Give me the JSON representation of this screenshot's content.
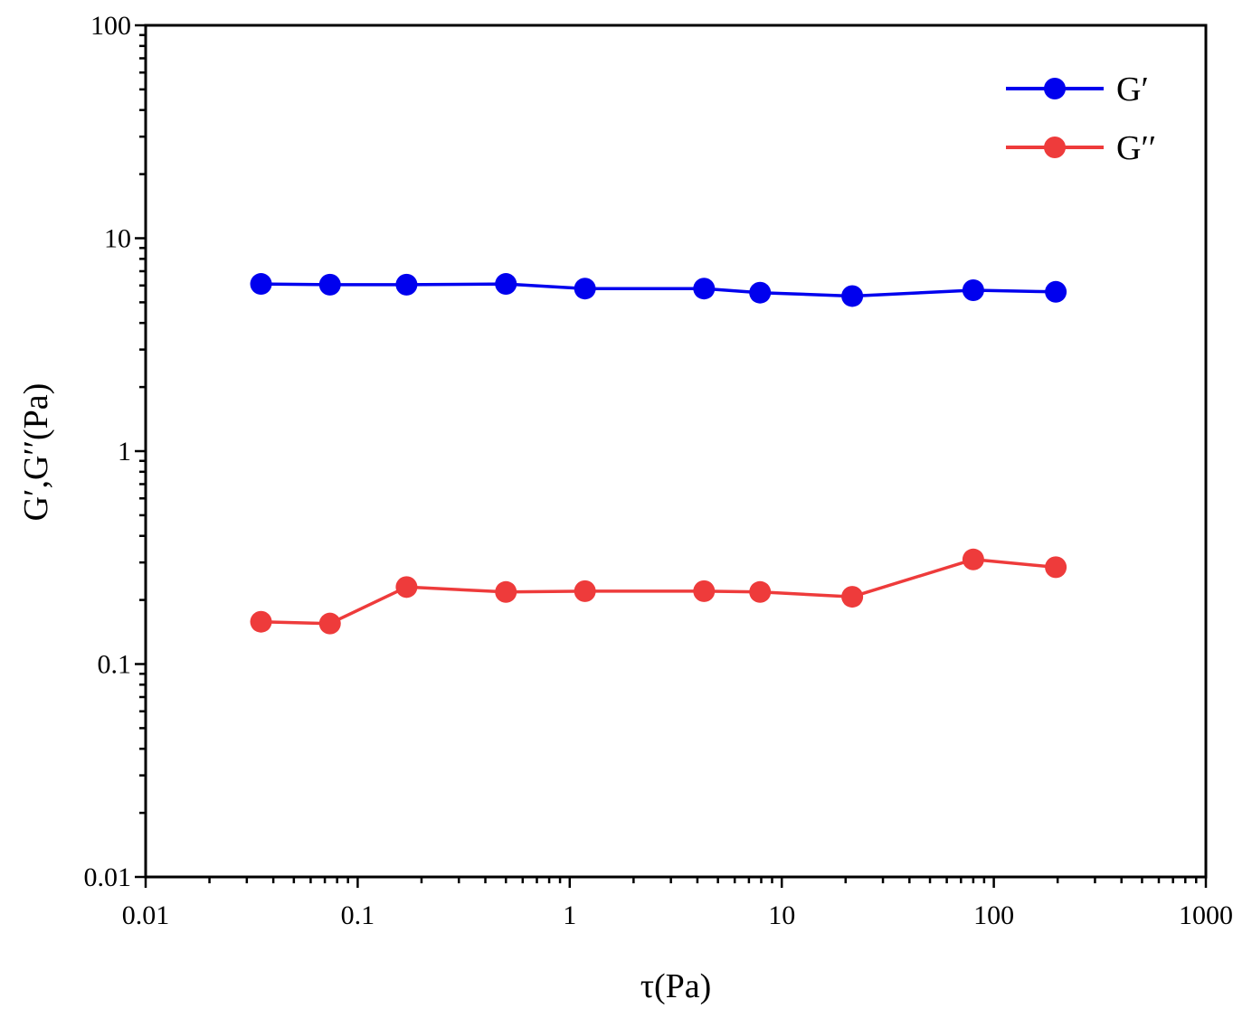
{
  "chart_data": {
    "type": "line",
    "title": "",
    "xlabel": "τ(Pa)",
    "ylabel": "G′,G′′(Pa)",
    "xscale": "log",
    "yscale": "log",
    "xlim": [
      0.01,
      1000
    ],
    "ylim": [
      0.01,
      100
    ],
    "x_ticks": [
      0.01,
      0.1,
      1,
      10,
      100,
      1000
    ],
    "x_tick_labels": [
      "0.01",
      "0.1",
      "1",
      "10",
      "100",
      "1000"
    ],
    "y_ticks": [
      0.01,
      0.1,
      1,
      10,
      100
    ],
    "y_tick_labels": [
      "0.01",
      "0.1",
      "1",
      "10",
      "100"
    ],
    "legend_position": "top-right",
    "series": [
      {
        "name": "G′",
        "color": "#0000ee",
        "x": [
          0.035,
          0.074,
          0.17,
          0.5,
          1.18,
          4.3,
          7.9,
          21.5,
          80,
          196
        ],
        "values": [
          6.1,
          6.05,
          6.05,
          6.1,
          5.8,
          5.8,
          5.55,
          5.35,
          5.7,
          5.6
        ]
      },
      {
        "name": "G′′",
        "color": "#ee3b3b",
        "x": [
          0.035,
          0.074,
          0.17,
          0.5,
          1.18,
          4.3,
          7.9,
          21.5,
          80,
          196
        ],
        "values": [
          0.158,
          0.155,
          0.23,
          0.218,
          0.22,
          0.22,
          0.218,
          0.207,
          0.31,
          0.285
        ]
      }
    ]
  }
}
